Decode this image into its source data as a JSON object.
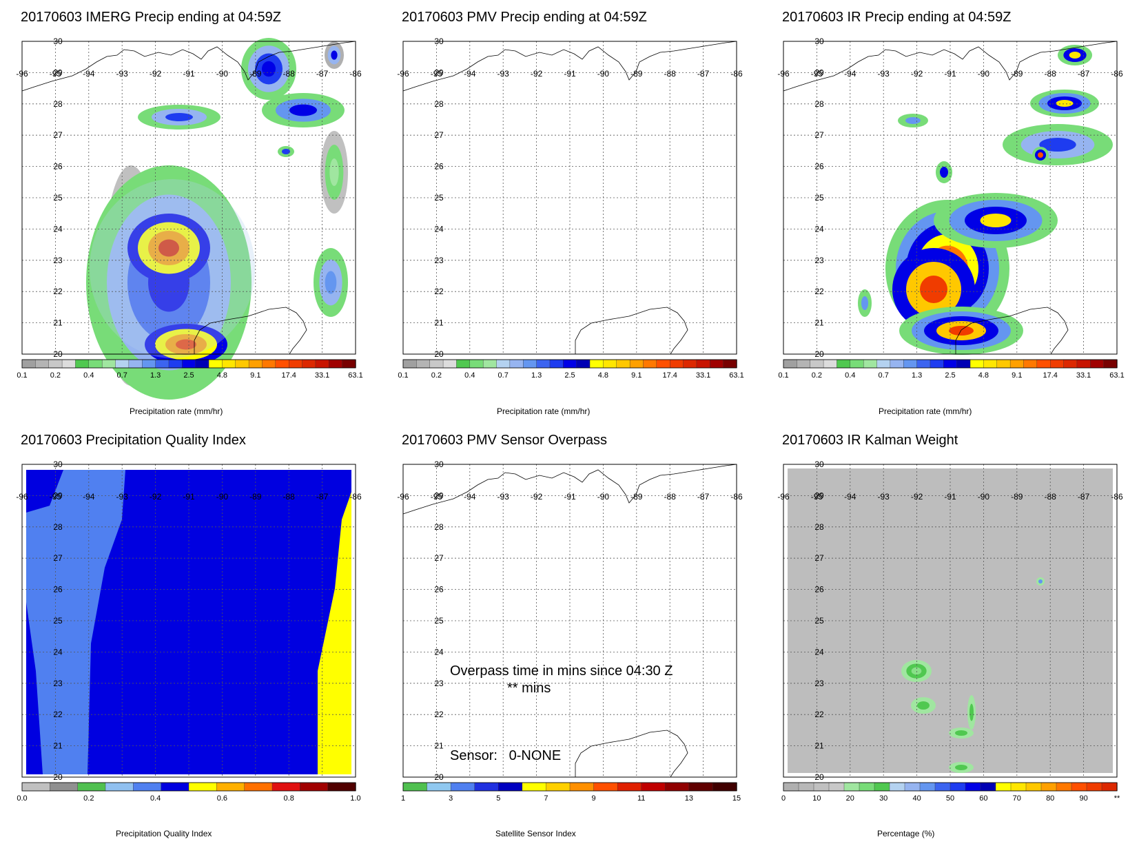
{
  "panels": [
    {
      "id": "imerg",
      "title": "20170603 IMERG Precip ending at 04:59Z",
      "colorbar_label": "Precipitation rate (mm/hr)",
      "colorbar_ticks": [
        "0.1",
        "0.2",
        "0.4",
        "0.7",
        "1.3",
        "2.5",
        "4.8",
        "9.1",
        "17.4",
        "33.1",
        "63.1"
      ]
    },
    {
      "id": "pmv",
      "title": "20170603 PMV Precip ending at 04:59Z",
      "colorbar_label": "Precipitation rate (mm/hr)",
      "colorbar_ticks": [
        "0.1",
        "0.2",
        "0.4",
        "0.7",
        "1.3",
        "2.5",
        "4.8",
        "9.1",
        "17.4",
        "33.1",
        "63.1"
      ]
    },
    {
      "id": "ir",
      "title": "20170603 IR Precip ending at 04:59Z",
      "colorbar_label": "Precipitation rate (mm/hr)",
      "colorbar_ticks": [
        "0.1",
        "0.2",
        "0.4",
        "0.7",
        "1.3",
        "2.5",
        "4.8",
        "9.1",
        "17.4",
        "33.1",
        "63.1"
      ]
    },
    {
      "id": "pqi",
      "title": "20170603 Precipitation Quality Index",
      "colorbar_label": "Precipitation Quality Index",
      "colorbar_ticks": [
        "0.0",
        "0.2",
        "0.4",
        "0.6",
        "0.8",
        "1.0"
      ]
    },
    {
      "id": "overpass",
      "title": "20170603 PMV Sensor Overpass",
      "colorbar_label": "Satellite Sensor Index",
      "colorbar_ticks": [
        "1",
        "3",
        "5",
        "7",
        "9",
        "11",
        "13",
        "15"
      ],
      "overpass_text": "Overpass time in mins since 04:30 Z",
      "mins_text": "** mins",
      "sensor_text": "Sensor:   0-NONE"
    },
    {
      "id": "kalman",
      "title": "20170603 IR Kalman Weight",
      "colorbar_label": "Percentage (%)",
      "colorbar_ticks": [
        "0",
        "10",
        "20",
        "30",
        "40",
        "50",
        "60",
        "70",
        "80",
        "90",
        "**"
      ]
    }
  ],
  "map": {
    "lon_labels": [
      "-96",
      "-95",
      "-94",
      "-93",
      "-92",
      "-91",
      "-90",
      "-89",
      "-88",
      "-87",
      "-86"
    ],
    "lat_labels": [
      "30",
      "29",
      "28",
      "27",
      "26",
      "25",
      "24",
      "23",
      "22",
      "21",
      "20"
    ]
  },
  "colors": {
    "precip": [
      "#a0a0a0",
      "#b4b4b4",
      "#c8c8c8",
      "#dcdcdc",
      "#50c850",
      "#78dc78",
      "#a0e6a0",
      "#b4d2f0",
      "#96b4f0",
      "#6496f0",
      "#3c64f0",
      "#1e3cf0",
      "#0000e6",
      "#0000b4",
      "#ffff00",
      "#ffe600",
      "#ffc800",
      "#ffa000",
      "#ff7800",
      "#ff5000",
      "#f03c00",
      "#dc2800",
      "#c81400",
      "#a00000",
      "#780000"
    ],
    "pqi": [
      "#c0c0c0",
      "#909090",
      "#50c050",
      "#90c0f0",
      "#5080f0",
      "#0000e0",
      "#ffff00",
      "#ffb000",
      "#ff7000",
      "#e01010",
      "#a00000",
      "#500000"
    ],
    "sensor": [
      "#50c050",
      "#90c8f0",
      "#5080f0",
      "#2030e0",
      "#0000c0",
      "#ffff00",
      "#ffd000",
      "#ff9000",
      "#ff5000",
      "#e02000",
      "#c00000",
      "#900000",
      "#600000",
      "#400000"
    ],
    "kalman": [
      "#b0b0b0",
      "#b8b8b8",
      "#c0c0c0",
      "#c8c8c8",
      "#a0e6a0",
      "#78dc78",
      "#50c850",
      "#b4d2f0",
      "#96b4f0",
      "#6496f0",
      "#3c64f0",
      "#1e3cf0",
      "#0000e6",
      "#0000b4",
      "#ffff00",
      "#ffe600",
      "#ffc800",
      "#ffa000",
      "#ff7800",
      "#ff5000",
      "#f03c00",
      "#dc2800"
    ]
  }
}
